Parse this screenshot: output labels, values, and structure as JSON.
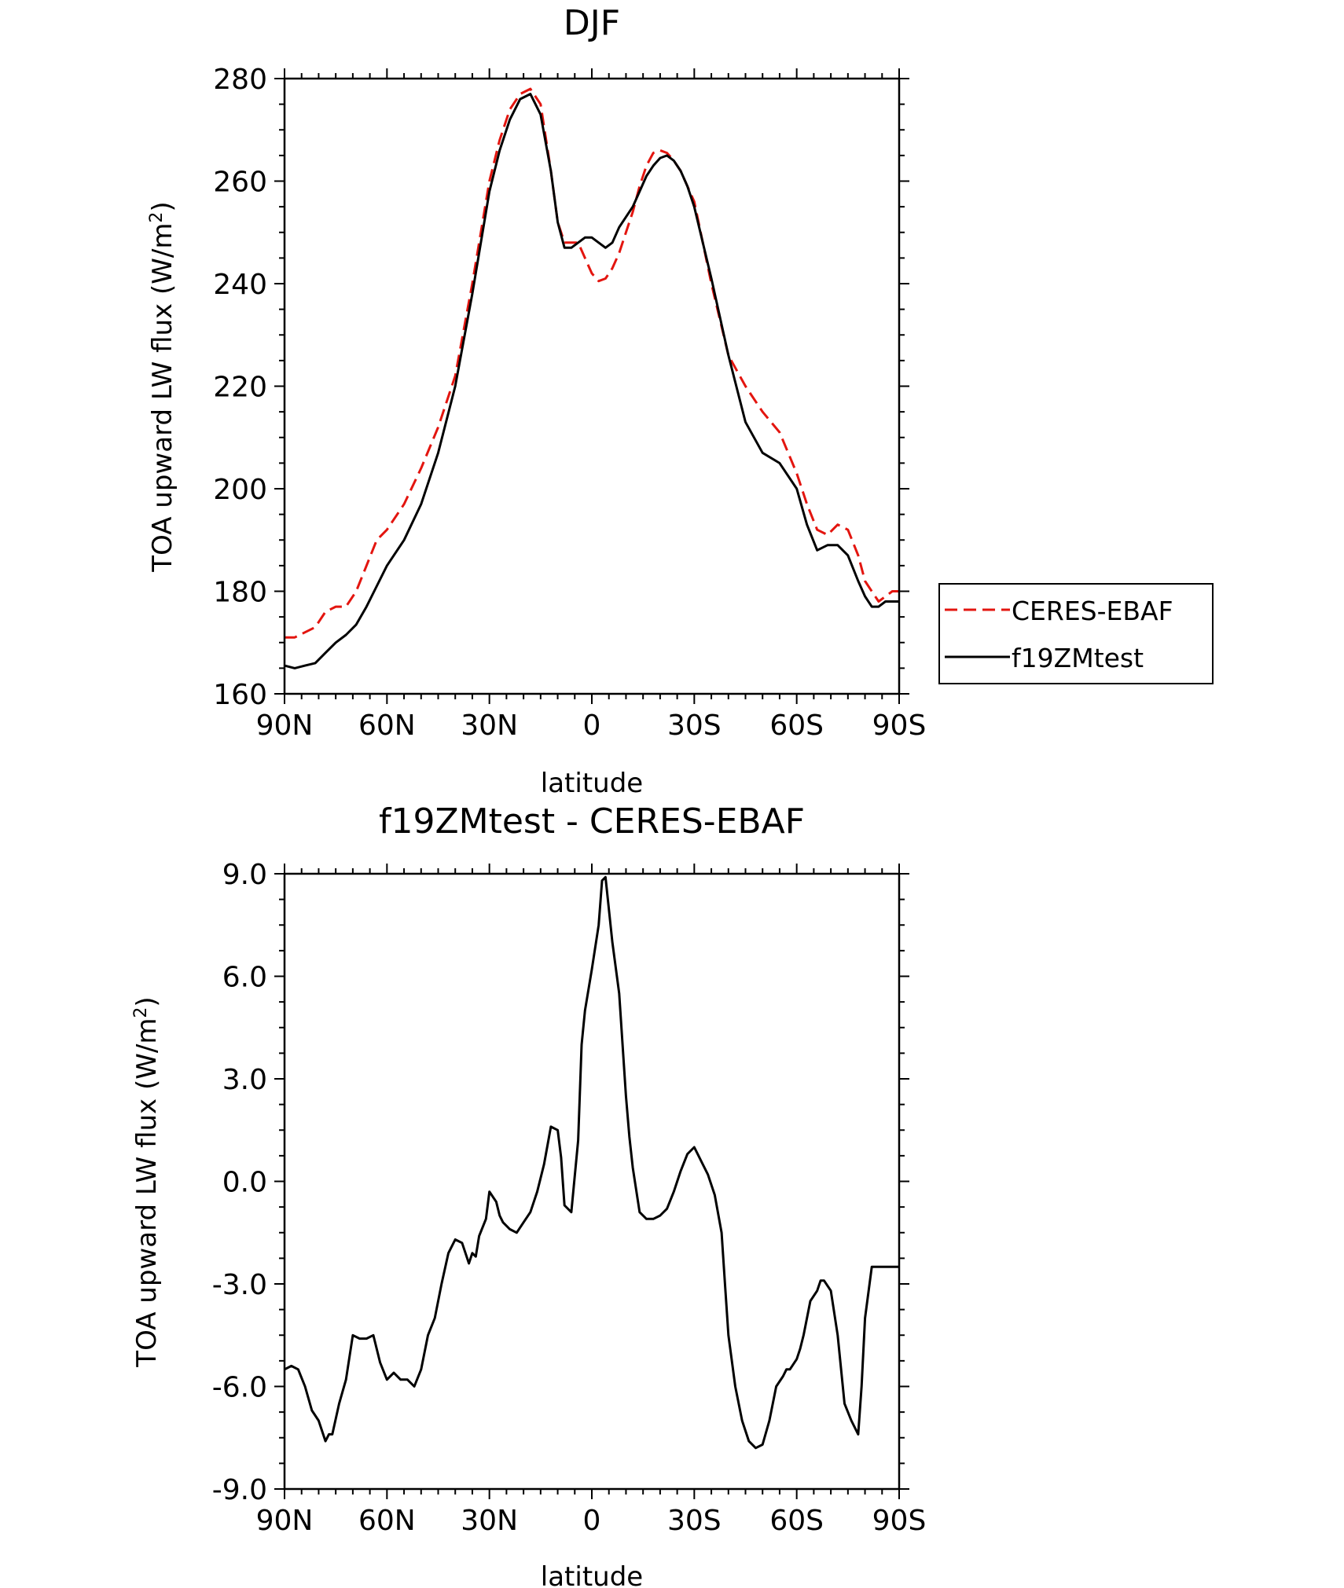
{
  "figure": {
    "background": "#ffffff"
  },
  "chart_data": [
    {
      "type": "line",
      "title": "DJF",
      "xlabel": "latitude",
      "ylabel": "TOA upward LW flux (W/m²)",
      "ylabel_main": "TOA upward LW flux (W/m",
      "ylabel_sup": "2",
      "ylabel_close": ")",
      "xlim": [
        90,
        -90
      ],
      "ylim": [
        160,
        280
      ],
      "x_ticks": [
        90,
        60,
        30,
        0,
        -30,
        -60,
        -90
      ],
      "x_tick_labels": [
        "90N",
        "60N",
        "30N",
        "0",
        "30S",
        "60S",
        "90S"
      ],
      "y_ticks": [
        160,
        180,
        200,
        220,
        240,
        260,
        280
      ],
      "y_tick_labels": [
        "160",
        "180",
        "200",
        "220",
        "240",
        "260",
        "280"
      ],
      "legend_position": "right",
      "series": [
        {
          "name": "CERES-EBAF",
          "color": "#e3150f",
          "dash": "dashed",
          "x": [
            90,
            87,
            84,
            81,
            78,
            75,
            72,
            69,
            66,
            63,
            60,
            55,
            50,
            45,
            40,
            35,
            30,
            27,
            24,
            21,
            18,
            15,
            12,
            10,
            8,
            6,
            4,
            2,
            0,
            -2,
            -4,
            -6,
            -8,
            -10,
            -12,
            -14,
            -16,
            -18,
            -20,
            -22,
            -24,
            -26,
            -28,
            -30,
            -35,
            -40,
            -45,
            -50,
            -55,
            -60,
            -63,
            -66,
            -69,
            -72,
            -75,
            -78,
            -80,
            -82,
            -84,
            -86,
            -88,
            -90
          ],
          "y": [
            171,
            171,
            172,
            173,
            176,
            177,
            177,
            180,
            185,
            190,
            192,
            197,
            204,
            212,
            222,
            240,
            260,
            268,
            274,
            277,
            278,
            275,
            262,
            252,
            248,
            248,
            248,
            245,
            242,
            240.5,
            241,
            243,
            246,
            250,
            254,
            259,
            263,
            265.5,
            266,
            265.5,
            264,
            262,
            259,
            256,
            240,
            226,
            220,
            215,
            211,
            203,
            197,
            192,
            191,
            193,
            192,
            187,
            182,
            180,
            178,
            179,
            180,
            180
          ]
        },
        {
          "name": "f19ZMtest",
          "color": "#000000",
          "dash": "solid",
          "x": [
            90,
            87,
            84,
            81,
            78,
            75,
            72,
            69,
            66,
            63,
            60,
            55,
            50,
            45,
            40,
            35,
            30,
            27,
            24,
            21,
            18,
            15,
            12,
            10,
            8,
            6,
            4,
            2,
            0,
            -2,
            -4,
            -6,
            -8,
            -10,
            -12,
            -14,
            -16,
            -18,
            -20,
            -22,
            -24,
            -26,
            -28,
            -30,
            -35,
            -40,
            -45,
            -50,
            -55,
            -60,
            -63,
            -66,
            -69,
            -72,
            -75,
            -78,
            -80,
            -82,
            -84,
            -86,
            -88,
            -90
          ],
          "y": [
            165.5,
            165,
            165.5,
            166,
            168,
            170,
            171.5,
            173.5,
            177,
            181,
            185,
            190,
            197,
            207,
            220,
            238,
            258,
            266,
            272,
            276,
            277,
            273,
            262,
            252,
            247,
            247,
            248,
            249,
            249,
            248,
            247,
            248,
            251,
            253,
            255,
            258,
            261,
            263,
            264.5,
            265,
            264,
            262,
            259,
            255,
            241,
            226,
            213,
            207,
            205,
            200,
            193,
            188,
            189,
            189,
            187,
            182,
            179,
            177,
            177,
            178,
            178,
            178
          ]
        }
      ]
    },
    {
      "type": "line",
      "title": "f19ZMtest - CERES-EBAF",
      "xlabel": "latitude",
      "ylabel": "TOA upward LW flux (W/m²)",
      "ylabel_main": "TOA upward LW flux (W/m",
      "ylabel_sup": "2",
      "ylabel_close": ")",
      "xlim": [
        90,
        -90
      ],
      "ylim": [
        -9,
        9
      ],
      "x_ticks": [
        90,
        60,
        30,
        0,
        -30,
        -60,
        -90
      ],
      "x_tick_labels": [
        "90N",
        "60N",
        "30N",
        "0",
        "30S",
        "60S",
        "90S"
      ],
      "y_ticks": [
        -9,
        -6,
        -3,
        0,
        3,
        6,
        9
      ],
      "y_tick_labels": [
        "-9.0",
        "-6.0",
        "-3.0",
        "0.0",
        "3.0",
        "6.0",
        "9.0"
      ],
      "series": [
        {
          "color": "#000000",
          "dash": "solid",
          "x": [
            90,
            88,
            86,
            84,
            82,
            80,
            78,
            77,
            76,
            74,
            72,
            70,
            68,
            67,
            66,
            64,
            62,
            60,
            58,
            56,
            54,
            52,
            50,
            48,
            46,
            44,
            42,
            40,
            38,
            36,
            35,
            34,
            33,
            31,
            30,
            28,
            27,
            26,
            24,
            22,
            20,
            18,
            16,
            14,
            12,
            10,
            9,
            8,
            6,
            4,
            3,
            2,
            0,
            -2,
            -3,
            -4,
            -6,
            -8,
            -9,
            -10,
            -11,
            -12,
            -14,
            -16,
            -18,
            -20,
            -22,
            -24,
            -26,
            -28,
            -30,
            -32,
            -34,
            -36,
            -38,
            -39,
            -40,
            -42,
            -44,
            -46,
            -48,
            -50,
            -52,
            -54,
            -56,
            -57,
            -58,
            -60,
            -61,
            -62,
            -64,
            -66,
            -67,
            -68,
            -70,
            -72,
            -74,
            -76,
            -78,
            -79,
            -80,
            -82,
            -84,
            -86,
            -88,
            -89,
            -90
          ],
          "y": [
            -5.5,
            -5.4,
            -5.5,
            -6,
            -6.7,
            -7.0,
            -7.6,
            -7.4,
            -7.4,
            -6.5,
            -5.8,
            -4.5,
            -4.6,
            -4.6,
            -4.6,
            -4.5,
            -5.3,
            -5.8,
            -5.6,
            -5.8,
            -5.8,
            -6.0,
            -5.5,
            -4.5,
            -4.0,
            -3.0,
            -2.1,
            -1.7,
            -1.8,
            -2.4,
            -2.1,
            -2.2,
            -1.6,
            -1.1,
            -0.3,
            -0.6,
            -1.0,
            -1.2,
            -1.4,
            -1.5,
            -1.2,
            -0.9,
            -0.3,
            0.5,
            1.6,
            1.5,
            0.7,
            -0.7,
            -0.9,
            1.2,
            4.0,
            5.0,
            6.2,
            7.5,
            8.8,
            8.9,
            7.0,
            5.5,
            4.0,
            2.5,
            1.3,
            0.4,
            -0.9,
            -1.1,
            -1.1,
            -1.0,
            -0.8,
            -0.3,
            0.3,
            0.8,
            1.0,
            0.6,
            0.2,
            -0.4,
            -1.5,
            -3.0,
            -4.5,
            -6.0,
            -7.0,
            -7.6,
            -7.8,
            -7.7,
            -7.0,
            -6.0,
            -5.7,
            -5.5,
            -5.5,
            -5.2,
            -4.9,
            -4.5,
            -3.5,
            -3.2,
            -2.9,
            -2.9,
            -3.2,
            -4.5,
            -6.5,
            -7.0,
            -7.4,
            -6.0,
            -4.0,
            -2.5,
            -2.5,
            -2.5,
            -2.5,
            -2.5,
            -2.5
          ]
        }
      ]
    }
  ]
}
